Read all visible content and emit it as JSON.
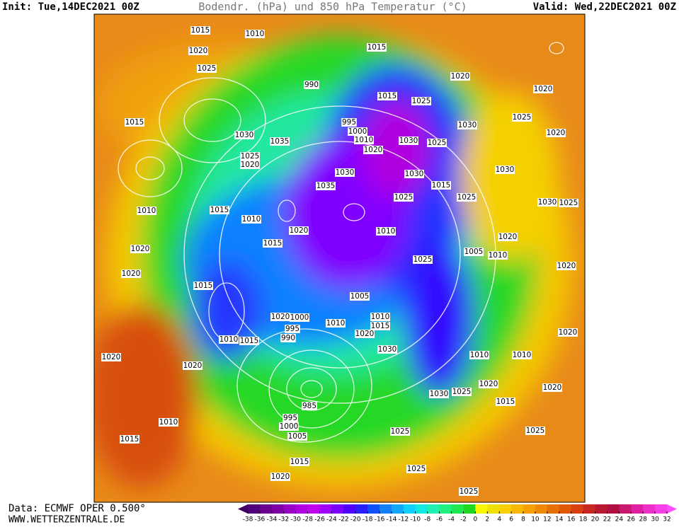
{
  "header": {
    "init": "Init: Tue,14DEC2021 00Z",
    "title": "Bodendr. (hPa) und 850 hPa Temperatur (°C)",
    "valid": "Valid: Wed,22DEC2021 00Z"
  },
  "footer": {
    "source": "Data: ECMWF OPER 0.500°",
    "site": "WWW.WETTERZENTRALE.DE"
  },
  "map": {
    "isobar_labels": [
      "1015",
      "1010",
      "1020",
      "1025",
      "1015",
      "1030",
      "1035",
      "1025",
      "1020",
      "1015",
      "1010",
      "1010",
      "1020",
      "1020",
      "1015",
      "1010",
      "1015",
      "1020",
      "1000",
      "995",
      "990",
      "1010",
      "1005",
      "1010",
      "1015",
      "1020",
      "1030",
      "985",
      "995",
      "1000",
      "1005",
      "1015",
      "1020",
      "1010",
      "1015",
      "1020",
      "1020",
      "1025",
      "1025",
      "1025",
      "1030",
      "1025",
      "1020",
      "1015",
      "1010",
      "1010",
      "1020",
      "1025",
      "1020",
      "1005",
      "1010",
      "1020",
      "1025",
      "1030",
      "1025",
      "1020",
      "1020",
      "1030",
      "1025",
      "1020",
      "1025",
      "1010",
      "1020",
      "1015",
      "1030",
      "1035",
      "1020",
      "1030",
      "1025",
      "1030",
      "1025",
      "1015",
      "1015",
      "1025",
      "1015",
      "995",
      "1000",
      "1010",
      "990",
      "1020",
      "1030"
    ]
  },
  "legend": {
    "ticks": [
      -38,
      -36,
      -34,
      -32,
      -30,
      -28,
      -26,
      -24,
      -22,
      -20,
      -18,
      -16,
      -14,
      -12,
      -10,
      -8,
      -6,
      -4,
      -2,
      0,
      2,
      4,
      6,
      8,
      10,
      12,
      14,
      16,
      18,
      20,
      22,
      24,
      26,
      28,
      30,
      32
    ],
    "colors": [
      "#400060",
      "#50007a",
      "#6a0090",
      "#8000a8",
      "#9800c8",
      "#b000e0",
      "#c000f0",
      "#a000ff",
      "#7a00ff",
      "#5000ff",
      "#2820ff",
      "#1050ff",
      "#1080ff",
      "#10a8ff",
      "#10d0ff",
      "#10e8e0",
      "#20f0b0",
      "#20f080",
      "#20e850",
      "#20d820",
      "#f8f800",
      "#f0e000",
      "#f8d000",
      "#f8b800",
      "#f8a000",
      "#f08800",
      "#e87000",
      "#e05800",
      "#d84010",
      "#c82820",
      "#b81830",
      "#b01040",
      "#c81870",
      "#e020a0",
      "#f030c8",
      "#f840e8",
      "#ff50ff"
    ]
  }
}
